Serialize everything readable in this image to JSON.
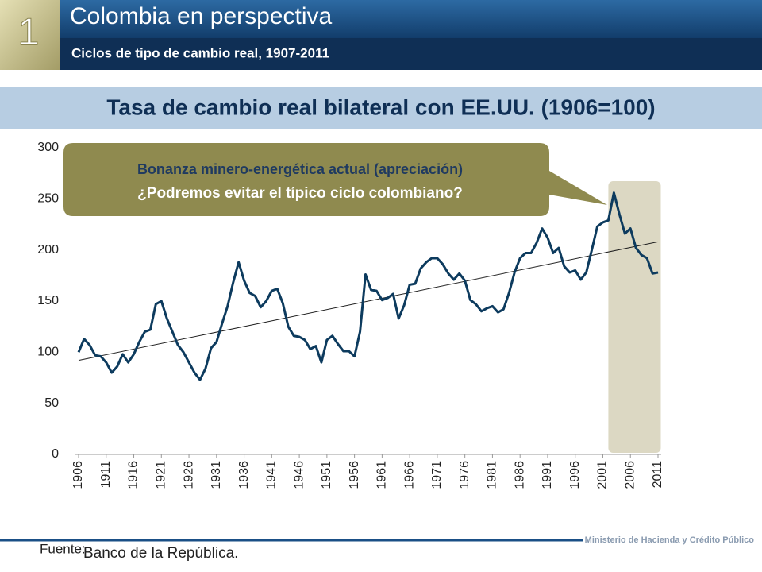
{
  "header": {
    "number": "1",
    "title": "Colombia en perspectiva",
    "subtitle": "Ciclos de tipo de cambio real, 1907-2011"
  },
  "chart_data": {
    "type": "line",
    "title": "Tasa de cambio real bilateral con EE.UU. (1906=100)",
    "annotation": [
      "Bonanza minero-energética actual (apreciación)",
      "¿Podremos evitar el típico ciclo colombiano?"
    ],
    "x": [
      1906,
      1907,
      1908,
      1909,
      1910,
      1911,
      1912,
      1913,
      1914,
      1915,
      1916,
      1917,
      1918,
      1919,
      1920,
      1921,
      1922,
      1923,
      1924,
      1925,
      1926,
      1927,
      1928,
      1929,
      1930,
      1931,
      1932,
      1933,
      1934,
      1935,
      1936,
      1937,
      1938,
      1939,
      1940,
      1941,
      1942,
      1943,
      1944,
      1945,
      1946,
      1947,
      1948,
      1949,
      1950,
      1951,
      1952,
      1953,
      1954,
      1955,
      1956,
      1957,
      1958,
      1959,
      1960,
      1961,
      1962,
      1963,
      1964,
      1965,
      1966,
      1967,
      1968,
      1969,
      1970,
      1971,
      1972,
      1973,
      1974,
      1975,
      1976,
      1977,
      1978,
      1979,
      1980,
      1981,
      1982,
      1983,
      1984,
      1985,
      1986,
      1987,
      1988,
      1989,
      1990,
      1991,
      1992,
      1993,
      1994,
      1995,
      1996,
      1997,
      1998,
      1999,
      2000,
      2001,
      2002,
      2003,
      2004,
      2005,
      2006,
      2007,
      2008,
      2009,
      2010,
      2011
    ],
    "series": [
      {
        "color": "#0d3b5e",
        "values": [
          100,
          113,
          107,
          97,
          96,
          90,
          80,
          86,
          98,
          90,
          98,
          110,
          120,
          122,
          147,
          150,
          133,
          120,
          107,
          100,
          90,
          80,
          73,
          84,
          104,
          110,
          128,
          145,
          168,
          188,
          170,
          158,
          155,
          144,
          150,
          160,
          162,
          148,
          125,
          116,
          115,
          112,
          103,
          106,
          90,
          112,
          116,
          108,
          101,
          101,
          96,
          120,
          176,
          161,
          160,
          151,
          153,
          157,
          133,
          146,
          166,
          167,
          182,
          188,
          192,
          192,
          186,
          177,
          171,
          177,
          170,
          151,
          147,
          140,
          143,
          145,
          139,
          142,
          158,
          178,
          192,
          197,
          197,
          207,
          221,
          212,
          197,
          202,
          184,
          178,
          180,
          171,
          178,
          200,
          223,
          227,
          229,
          256,
          235,
          216,
          221,
          202,
          195,
          192,
          177,
          178
        ]
      }
    ],
    "trend": {
      "x": [
        1906,
        2011
      ],
      "values": [
        92,
        208
      ],
      "color": "#222"
    },
    "highlight": {
      "xlim": [
        2002,
        2011.5
      ],
      "color": "#dcd8c3"
    },
    "xlim": [
      1906,
      2011
    ],
    "ylim": [
      0,
      300
    ],
    "xticks": [
      1906,
      1911,
      1916,
      1921,
      1926,
      1931,
      1936,
      1941,
      1946,
      1951,
      1956,
      1961,
      1966,
      1971,
      1976,
      1981,
      1986,
      1991,
      1996,
      2001,
      2006,
      2011
    ],
    "yticks": [
      0,
      50,
      100,
      150,
      200,
      250,
      300
    ]
  },
  "footer": {
    "source_label": "Fuente:",
    "source": "Banco de la República.",
    "ministry": "Ministerio de Hacienda y Crédito Público"
  }
}
